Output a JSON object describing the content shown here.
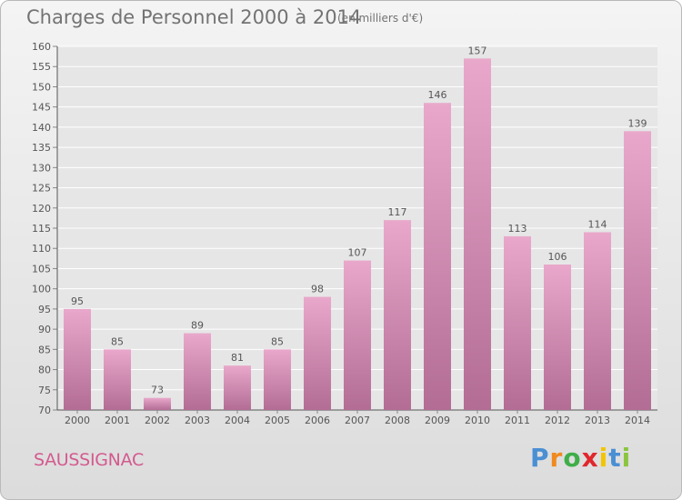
{
  "title": "Charges de Personnel 2000 à 2014",
  "subtitle": "(en milliers d'€)",
  "commune": "SAUSSIGNAC",
  "logo": {
    "letters": [
      "P",
      "r",
      "o",
      "x",
      "i",
      "t",
      "i"
    ],
    "colors": [
      "#4a8fd4",
      "#f08a1e",
      "#3fae49",
      "#e0282d",
      "#f3c500",
      "#4a8fd4",
      "#8bc53f"
    ]
  },
  "colors": {
    "bar_top": "#e9a8cb",
    "bar_bottom": "#b36d95",
    "text": "#555555"
  },
  "chart_data": {
    "type": "bar",
    "categories": [
      "2000",
      "2001",
      "2002",
      "2003",
      "2004",
      "2005",
      "2006",
      "2007",
      "2008",
      "2009",
      "2010",
      "2011",
      "2012",
      "2013",
      "2014"
    ],
    "values": [
      95,
      85,
      73,
      89,
      81,
      85,
      98,
      107,
      117,
      146,
      157,
      113,
      106,
      114,
      139
    ],
    "ylim": [
      70,
      160
    ],
    "yticks": [
      70,
      75,
      80,
      85,
      90,
      95,
      100,
      105,
      110,
      115,
      120,
      125,
      130,
      135,
      140,
      145,
      150,
      155,
      160
    ],
    "grid": true
  }
}
